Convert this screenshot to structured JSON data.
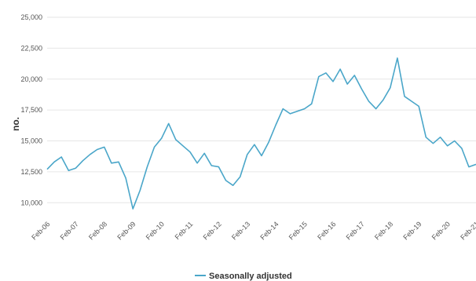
{
  "chart_data": {
    "type": "line",
    "title": "",
    "xlabel": "",
    "ylabel": "no.",
    "ylim": [
      9000,
      25000
    ],
    "yticks": [
      10000,
      12500,
      15000,
      17500,
      20000,
      22500,
      25000
    ],
    "ytick_labels": [
      "10,000",
      "12,500",
      "15,000",
      "17,500",
      "20,000",
      "22,500",
      "25,000"
    ],
    "xlim": [
      "2006-02",
      "2021-02"
    ],
    "xticks": [
      "2006-02",
      "2007-02",
      "2008-02",
      "2009-02",
      "2010-02",
      "2011-02",
      "2012-02",
      "2013-02",
      "2014-02",
      "2015-02",
      "2016-02",
      "2017-02",
      "2018-02",
      "2019-02",
      "2020-02",
      "2021-02"
    ],
    "xtick_labels": [
      "Feb-06",
      "Feb-07",
      "Feb-08",
      "Feb-09",
      "Feb-10",
      "Feb-11",
      "Feb-12",
      "Feb-13",
      "Feb-14",
      "Feb-15",
      "Feb-16",
      "Feb-17",
      "Feb-18",
      "Feb-19",
      "Feb-20",
      "Feb-21"
    ],
    "grid": "horizontal",
    "legend_position": "bottom-center",
    "colors": {
      "series": "#4aa6c9"
    },
    "series": [
      {
        "name": "Seasonally adjusted",
        "x": [
          "2006-02",
          "2006-05",
          "2006-08",
          "2006-11",
          "2007-02",
          "2007-05",
          "2007-08",
          "2007-11",
          "2008-02",
          "2008-05",
          "2008-08",
          "2008-11",
          "2009-02",
          "2009-05",
          "2009-08",
          "2009-11",
          "2010-02",
          "2010-05",
          "2010-08",
          "2010-11",
          "2011-02",
          "2011-05",
          "2011-08",
          "2011-11",
          "2012-02",
          "2012-05",
          "2012-08",
          "2012-11",
          "2013-02",
          "2013-05",
          "2013-08",
          "2013-11",
          "2014-02",
          "2014-05",
          "2014-08",
          "2014-11",
          "2015-02",
          "2015-05",
          "2015-08",
          "2015-11",
          "2016-02",
          "2016-05",
          "2016-08",
          "2016-11",
          "2017-02",
          "2017-05",
          "2017-08",
          "2017-11",
          "2018-02",
          "2018-05",
          "2018-08",
          "2018-11",
          "2019-02",
          "2019-05",
          "2019-08",
          "2019-11",
          "2020-02",
          "2020-05",
          "2020-08",
          "2020-11",
          "2021-02"
        ],
        "values": [
          12700,
          13300,
          13700,
          12600,
          12800,
          13400,
          13900,
          14300,
          14500,
          13200,
          13300,
          12000,
          9500,
          11000,
          12900,
          14500,
          15200,
          16400,
          15100,
          14600,
          14100,
          13200,
          14000,
          13000,
          12900,
          11800,
          11400,
          12100,
          13900,
          14700,
          13800,
          14900,
          16300,
          17600,
          17200,
          17400,
          17600,
          18000,
          20200,
          20500,
          19800,
          20800,
          19600,
          20300,
          19200,
          18200,
          17600,
          18300,
          19300,
          21700,
          18600,
          18200,
          17800,
          15300,
          14800,
          15300,
          14600,
          15000,
          14400,
          12900,
          13100
        ]
      }
    ]
  }
}
